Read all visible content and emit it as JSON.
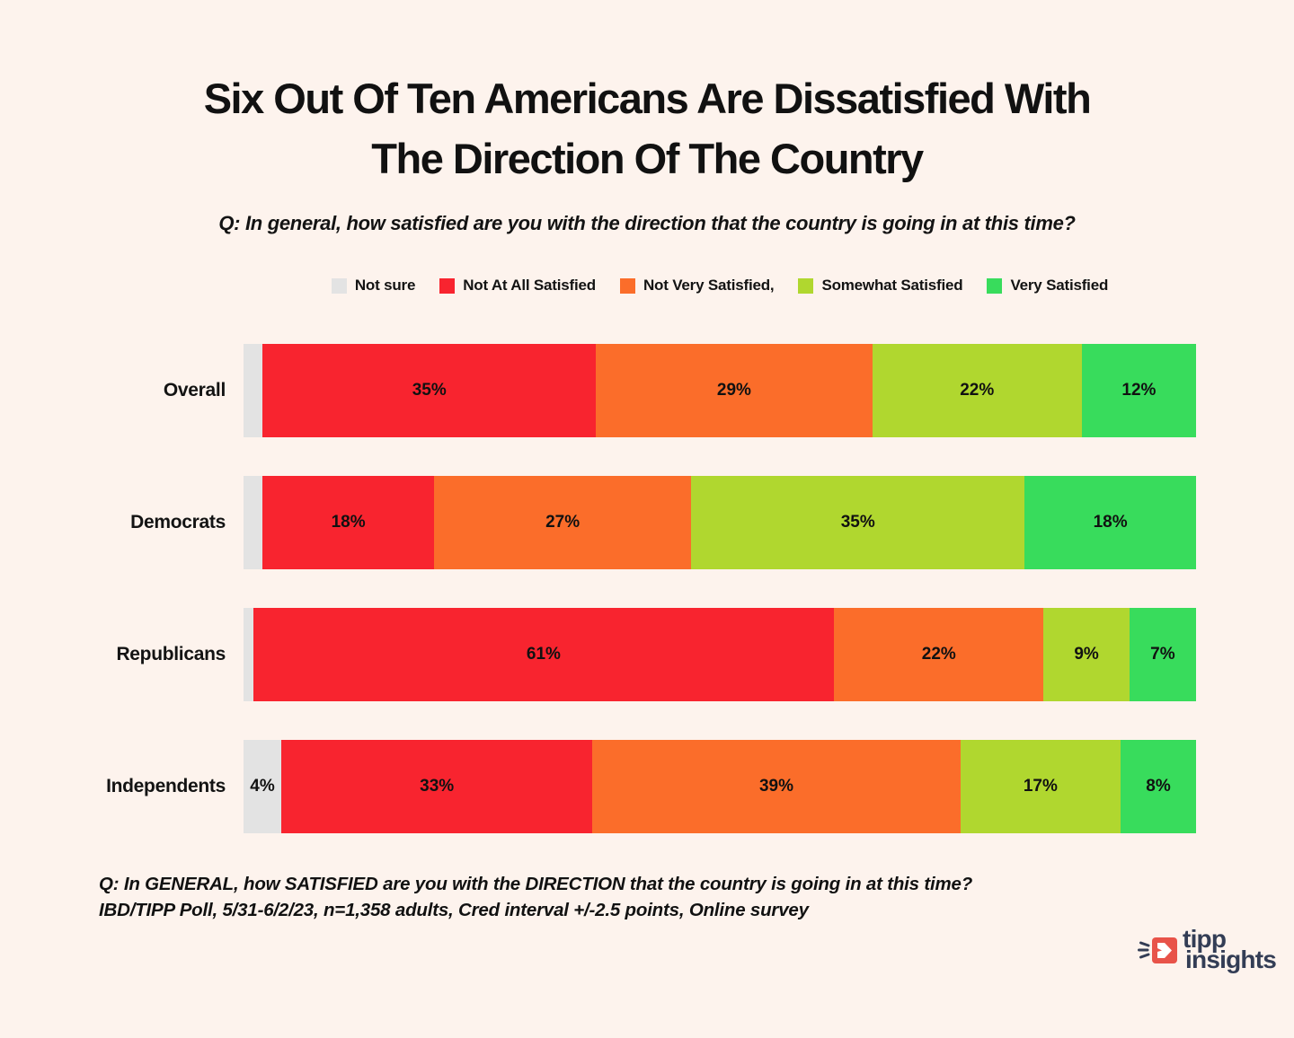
{
  "page": {
    "background": "#FDF3ED",
    "title_line1": "Six Out Of Ten Americans Are Dissatisfied With",
    "title_line2": "The Direction Of The Country",
    "subtitle": "Q: In general, how satisfied are you with the direction that the country is going in at this time?",
    "footer_line1": "Q:  In GENERAL, how SATISFIED are you with the DIRECTION that the country is going in at this time?",
    "footer_line2": "IBD/TIPP Poll, 5/31-6/2/23, n=1,358 adults, Cred interval +/-2.5 points, Online survey",
    "logo": {
      "word1": "tipp",
      "word2": "insights",
      "icon_color": "#E85349",
      "text_color": "#333D55"
    }
  },
  "chart_data": {
    "type": "bar",
    "orientation": "horizontal_stacked",
    "title": "Six Out Of Ten Americans Are Dissatisfied With The Direction Of The Country",
    "categories": [
      "Overall",
      "Democrats",
      "Republicans",
      "Independents"
    ],
    "series": [
      {
        "name": "Not sure",
        "color": "#E3E3E3",
        "values": [
          2,
          2,
          1,
          4
        ]
      },
      {
        "name": "Not At All Satisfied",
        "color": "#F8242F",
        "values": [
          35,
          18,
          61,
          33
        ]
      },
      {
        "name": "Not Very Satisfied,",
        "color": "#FB6D2A",
        "values": [
          29,
          27,
          22,
          39
        ]
      },
      {
        "name": "Somewhat Satisfied",
        "color": "#B0D72F",
        "values": [
          22,
          35,
          9,
          17
        ]
      },
      {
        "name": "Very Satisfied",
        "color": "#38DC5C",
        "values": [
          12,
          18,
          7,
          8
        ]
      }
    ],
    "value_suffix": "%",
    "label_min_value_to_show": 4,
    "label_color": "#111111",
    "xlim": [
      0,
      100
    ],
    "legend_position": "top-center",
    "grid": false
  }
}
